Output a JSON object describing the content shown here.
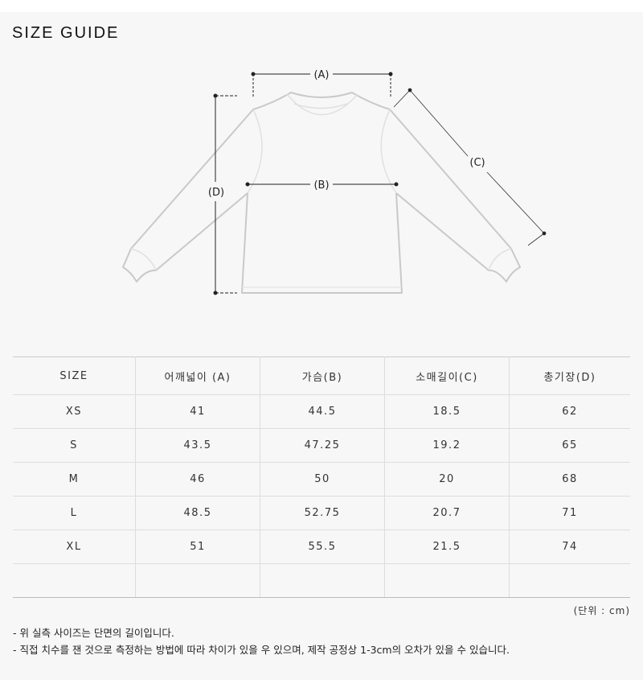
{
  "title": "SIZE GUIDE",
  "diagram": {
    "a": "(A)",
    "b": "(B)",
    "c": "(C)",
    "d": "(D)"
  },
  "table": {
    "headers": [
      "SIZE",
      "어깨넓이 (A)",
      "가슴(B)",
      "소매길이(C)",
      "총기장(D)"
    ],
    "rows": [
      [
        "XS",
        "41",
        "44.5",
        "18.5",
        "62"
      ],
      [
        "S",
        "43.5",
        "47.25",
        "19.2",
        "65"
      ],
      [
        "M",
        "46",
        "50",
        "20",
        "68"
      ],
      [
        "L",
        "48.5",
        "52.75",
        "20.7",
        "71"
      ],
      [
        "XL",
        "51",
        "55.5",
        "21.5",
        "74"
      ],
      [
        "",
        "",
        "",
        "",
        ""
      ]
    ]
  },
  "unit": "(단위 : cm)",
  "notes": [
    "- 위 실측 사이즈는 단면의 길이입니다.",
    "- 직접 치수를 잰 것으로 측정하는 방법에 따라 차이가 있을 우 있으며, 제작 공정상 1-3cm의 오차가 있을 수 있습니다."
  ]
}
